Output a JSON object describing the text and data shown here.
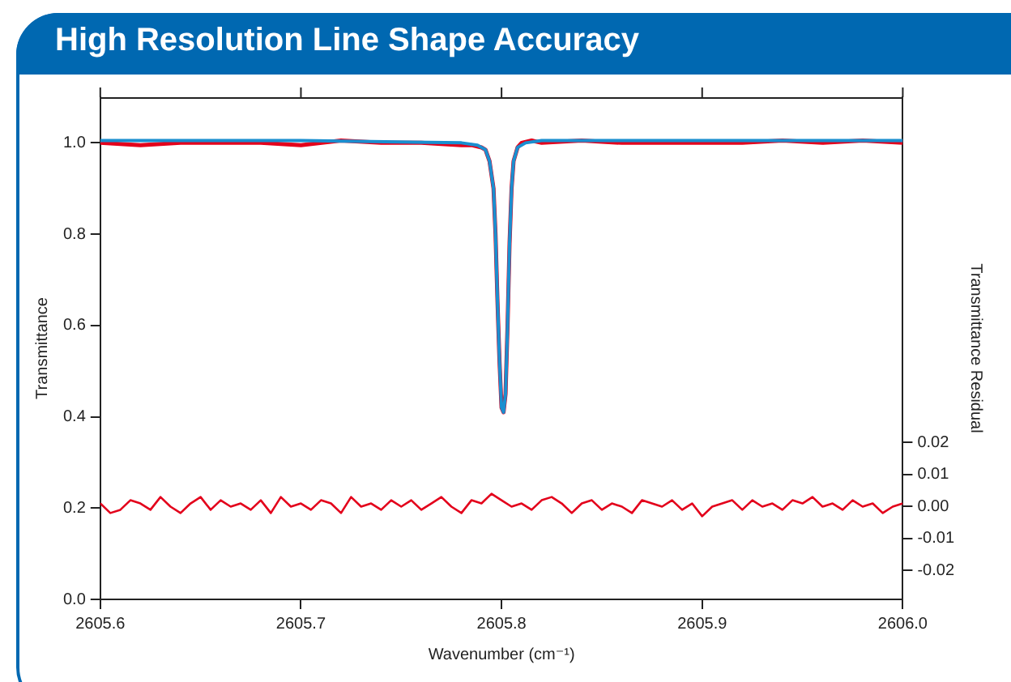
{
  "chart_data": {
    "type": "line",
    "title": "High Resolution Line Shape Accuracy",
    "xlabel": "Wavenumber (cm⁻¹)",
    "ylabel": "Transmittance",
    "y2label": "Transmittance Residual",
    "xlim": [
      2605.6,
      2606.0
    ],
    "xticks": [
      2605.6,
      2605.7,
      2605.8,
      2605.9,
      {
        "value": 2606.0,
        "label": "2606.0"
      }
    ],
    "ylim": [
      0,
      1.1
    ],
    "yticks": [
      {
        "value": 0,
        "label": "0.0"
      },
      0.2,
      0.4,
      0.6,
      0.8,
      {
        "value": 1,
        "label": "1.0"
      }
    ],
    "y2lim": [
      -0.029,
      0.128
    ],
    "y2ticks": [
      0.02,
      0.01,
      {
        "value": 0,
        "label": "0.00"
      },
      -0.01,
      -0.02
    ],
    "grid": false,
    "legend": false,
    "marker": "none",
    "line_style": "solid",
    "series": [
      {
        "color": "#e3001b",
        "x": [
          2605.6,
          2605.62,
          2605.64,
          2605.66,
          2605.68,
          2605.7,
          2605.72,
          2605.74,
          2605.76,
          2605.78,
          2605.785,
          2605.79,
          2605.792,
          2605.794,
          2605.796,
          2605.797,
          2605.798,
          2605.799,
          2605.8,
          2605.801,
          2605.802,
          2605.803,
          2605.804,
          2605.805,
          2605.806,
          2605.808,
          2605.81,
          2605.815,
          2605.82,
          2605.84,
          2605.86,
          2605.88,
          2605.9,
          2605.92,
          2605.94,
          2605.96,
          2605.98,
          2606.0
        ],
        "values": [
          1.0,
          0.995,
          1.0,
          1.0,
          1.0,
          0.995,
          1.005,
          1.0,
          1.0,
          0.995,
          0.995,
          0.99,
          0.985,
          0.96,
          0.9,
          0.8,
          0.65,
          0.52,
          0.42,
          0.41,
          0.45,
          0.6,
          0.78,
          0.9,
          0.96,
          0.99,
          1.0,
          1.005,
          1.0,
          1.005,
          1.0,
          1.0,
          1.0,
          1.0,
          1.005,
          1.0,
          1.005,
          1.0
        ]
      },
      {
        "color": "#1a8fd0",
        "x": [
          2605.6,
          2605.7,
          2605.78,
          2605.788,
          2605.792,
          2605.794,
          2605.796,
          2605.797,
          2605.798,
          2605.799,
          2605.8,
          2605.801,
          2605.802,
          2605.803,
          2605.804,
          2605.805,
          2605.806,
          2605.808,
          2605.812,
          2605.82,
          2605.9,
          2606.0
        ],
        "values": [
          1.005,
          1.005,
          1.0,
          0.995,
          0.985,
          0.96,
          0.9,
          0.8,
          0.65,
          0.52,
          0.42,
          0.41,
          0.45,
          0.6,
          0.78,
          0.9,
          0.96,
          0.99,
          1.0,
          1.005,
          1.005,
          1.005
        ]
      },
      {
        "color": "#e3001b",
        "axis": "y2",
        "x": [
          2605.6,
          2605.605,
          2605.61,
          2605.615,
          2605.62,
          2605.625,
          2605.63,
          2605.635,
          2605.64,
          2605.645,
          2605.65,
          2605.655,
          2605.66,
          2605.665,
          2605.67,
          2605.675,
          2605.68,
          2605.685,
          2605.69,
          2605.695,
          2605.7,
          2605.705,
          2605.71,
          2605.715,
          2605.72,
          2605.725,
          2605.73,
          2605.735,
          2605.74,
          2605.745,
          2605.75,
          2605.755,
          2605.76,
          2605.765,
          2605.77,
          2605.775,
          2605.78,
          2605.785,
          2605.79,
          2605.795,
          2605.8,
          2605.805,
          2605.81,
          2605.815,
          2605.82,
          2605.825,
          2605.83,
          2605.835,
          2605.84,
          2605.845,
          2605.85,
          2605.855,
          2605.86,
          2605.865,
          2605.87,
          2605.875,
          2605.88,
          2605.885,
          2605.89,
          2605.895,
          2605.9,
          2605.905,
          2605.91,
          2605.915,
          2605.92,
          2605.925,
          2605.93,
          2605.935,
          2605.94,
          2605.945,
          2605.95,
          2605.955,
          2605.96,
          2605.965,
          2605.97,
          2605.975,
          2605.98,
          2605.985,
          2605.99,
          2605.995,
          2606.0
        ],
        "values": [
          0.001,
          -0.002,
          -0.001,
          0.002,
          0.001,
          -0.001,
          0.003,
          0.0,
          -0.002,
          0.001,
          0.003,
          -0.001,
          0.002,
          0.0,
          0.001,
          -0.001,
          0.002,
          -0.002,
          0.003,
          0.0,
          0.001,
          -0.001,
          0.002,
          0.001,
          -0.002,
          0.003,
          0.0,
          0.001,
          -0.001,
          0.002,
          0.0,
          0.002,
          -0.001,
          0.001,
          0.003,
          0.0,
          -0.002,
          0.002,
          0.001,
          0.004,
          0.002,
          0.0,
          0.001,
          -0.001,
          0.002,
          0.003,
          0.001,
          -0.002,
          0.001,
          0.002,
          -0.001,
          0.001,
          0.0,
          -0.002,
          0.002,
          0.001,
          0.0,
          0.002,
          -0.001,
          0.001,
          -0.003,
          0.0,
          0.001,
          0.002,
          -0.001,
          0.002,
          0.0,
          0.001,
          -0.001,
          0.002,
          0.001,
          0.003,
          0.0,
          0.001,
          -0.001,
          0.002,
          0.0,
          0.001,
          -0.002,
          0.0,
          0.001
        ]
      }
    ]
  }
}
